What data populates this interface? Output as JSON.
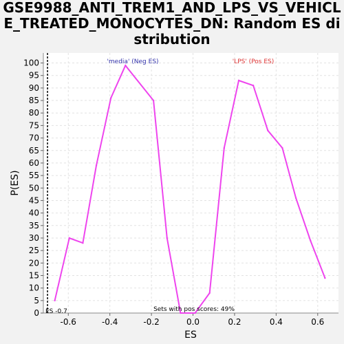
{
  "chart_data": {
    "type": "line",
    "title": "GSE9988_ANTI_TREM1_AND_LPS_VS_VEHICLE_TREATED_MONOCYTES_DN: Random ES distribution",
    "xlabel": "ES",
    "ylabel": "P(ES)",
    "xlim": [
      -0.72,
      0.7
    ],
    "ylim": [
      0,
      104
    ],
    "xticks": [
      -0.6,
      -0.4,
      -0.2,
      0.0,
      0.2,
      0.4,
      0.6
    ],
    "xtick_labels": [
      "-0.6",
      "-0.4",
      "-0.2",
      "0.0",
      "0.2",
      "0.4",
      "0.6"
    ],
    "yticks": [
      0,
      5,
      10,
      15,
      20,
      25,
      30,
      35,
      40,
      45,
      50,
      55,
      60,
      65,
      70,
      75,
      80,
      85,
      90,
      95,
      100
    ],
    "grid": true,
    "series": [
      {
        "color": "#ee44ee",
        "x": [
          -0.665,
          -0.595,
          -0.53,
          -0.465,
          -0.395,
          -0.325,
          -0.19,
          -0.125,
          -0.06,
          0.01,
          0.08,
          0.15,
          0.22,
          0.29,
          0.36,
          0.43,
          0.495,
          0.565,
          0.635
        ],
        "y": [
          5,
          30,
          28,
          59,
          86,
          99,
          85,
          30,
          0,
          0,
          8,
          66,
          93,
          91,
          73,
          66,
          46,
          29,
          14
        ]
      }
    ],
    "annotations": {
      "neg_label": "'media' (Neg ES)",
      "pos_label": "'LPS' (Pos ES)",
      "sets_label": "Sets with pos scores: 49%",
      "es_label": "ES -0.7",
      "es_value": -0.7
    },
    "colors": {
      "neg": "#3333aa",
      "pos": "#dd3333",
      "line": "#ee44ee"
    }
  }
}
